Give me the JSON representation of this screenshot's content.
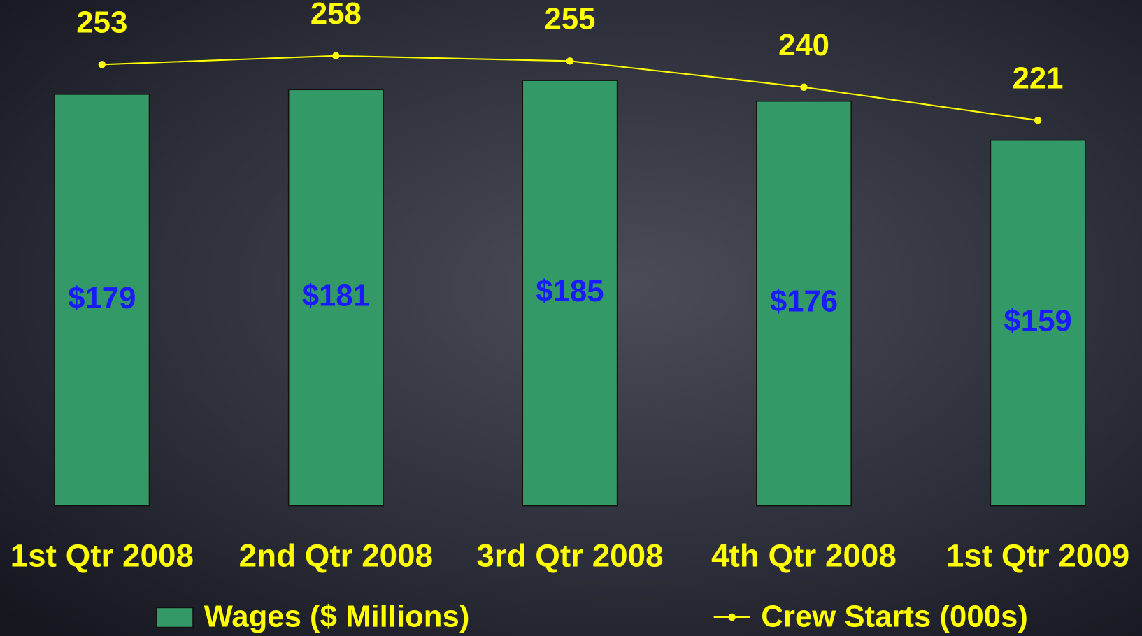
{
  "chart_data": {
    "type": "bar",
    "categories": [
      "1st Qtr 2008",
      "2nd Qtr 2008",
      "3rd Qtr 2008",
      "4th Qtr 2008",
      "1st Qtr 2009"
    ],
    "series": [
      {
        "name": "Wages ($ Millions)",
        "type": "bar",
        "color": "#339966",
        "label_color": "#1a1aff",
        "values": [
          179,
          181,
          185,
          176,
          159
        ],
        "value_labels": [
          "$179",
          "$181",
          "$185",
          "$176",
          "$159"
        ]
      },
      {
        "name": "Crew Starts (000s)",
        "type": "line",
        "axis": "y2",
        "color": "#ffff00",
        "values": [
          253,
          258,
          255,
          240,
          221
        ]
      }
    ],
    "ylim": [
      0,
      220
    ],
    "y2lim": [
      0,
      290
    ]
  }
}
